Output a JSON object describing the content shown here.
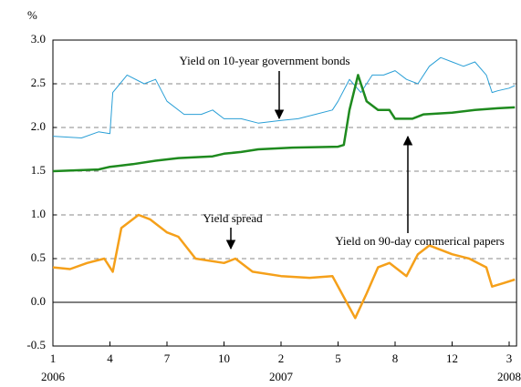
{
  "chart_data": {
    "type": "line",
    "y_unit_label": "%",
    "ylim": [
      -0.5,
      3.0
    ],
    "yticks": [
      {
        "value": 3.0,
        "label": "3.0"
      },
      2.5,
      {
        "value": 2.0,
        "label": "2.0"
      },
      1.5,
      {
        "value": 1.0,
        "label": "1.0"
      },
      0.5,
      {
        "value": 0.0,
        "label": "0.0"
      },
      -0.5
    ],
    "xlim": [
      0,
      8.13
    ],
    "xticks": [
      {
        "value": 0,
        "label": "1"
      },
      {
        "value": 1,
        "label": "4"
      },
      {
        "value": 2,
        "label": "7"
      },
      {
        "value": 3,
        "label": "10"
      },
      {
        "value": 4,
        "label": "2"
      },
      {
        "value": 5,
        "label": "5"
      },
      {
        "value": 6,
        "label": "8"
      },
      {
        "value": 7,
        "label": "12"
      },
      {
        "value": 8,
        "label": "3"
      }
    ],
    "xtick_years": [
      {
        "value": 0,
        "label": "2006"
      },
      {
        "value": 4,
        "label": "2007"
      },
      {
        "value": 8,
        "label": "2008"
      }
    ],
    "grid": true,
    "annotations": [
      "Yield on 10-year government bonds",
      "Yield on 90-day commerical papers",
      "Yield spread"
    ],
    "series": [
      {
        "name": "Yield on 10-year government bonds",
        "color": "#2a9fd6",
        "width": 1,
        "x": [
          0,
          0.5,
          0.8,
          1.0,
          1.05,
          1.3,
          1.6,
          1.8,
          2.0,
          2.3,
          2.6,
          2.8,
          3.0,
          3.3,
          3.6,
          4.0,
          4.3,
          4.6,
          4.9,
          5.0,
          5.2,
          5.4,
          5.6,
          5.8,
          6.0,
          6.2,
          6.4,
          6.6,
          6.8,
          7.0,
          7.2,
          7.4,
          7.6,
          7.7,
          7.8,
          8.0,
          8.1
        ],
        "values": [
          1.9,
          1.88,
          1.95,
          1.93,
          2.4,
          2.6,
          2.5,
          2.55,
          2.3,
          2.15,
          2.15,
          2.2,
          2.1,
          2.1,
          2.05,
          2.08,
          2.1,
          2.15,
          2.2,
          2.3,
          2.55,
          2.4,
          2.6,
          2.6,
          2.65,
          2.55,
          2.5,
          2.7,
          2.8,
          2.75,
          2.7,
          2.75,
          2.6,
          2.4,
          2.42,
          2.45,
          2.48
        ]
      },
      {
        "name": "Yield on 90-day commerical papers",
        "color": "#1e8a1e",
        "width": 2.5,
        "x": [
          0,
          0.8,
          1.0,
          1.4,
          1.8,
          2.2,
          2.8,
          3.0,
          3.3,
          3.6,
          4.2,
          5.0,
          5.1,
          5.2,
          5.35,
          5.5,
          5.7,
          5.9,
          6.0,
          6.3,
          6.5,
          7.0,
          7.4,
          7.8,
          8.1
        ],
        "values": [
          1.5,
          1.52,
          1.55,
          1.58,
          1.62,
          1.65,
          1.67,
          1.7,
          1.72,
          1.75,
          1.77,
          1.78,
          1.8,
          2.2,
          2.6,
          2.3,
          2.2,
          2.2,
          2.1,
          2.1,
          2.15,
          2.17,
          2.2,
          2.22,
          2.23
        ]
      },
      {
        "name": "Yield spread",
        "color": "#f5a01a",
        "width": 2.5,
        "x": [
          0,
          0.3,
          0.6,
          0.9,
          1.05,
          1.2,
          1.5,
          1.7,
          2.0,
          2.2,
          2.5,
          3.0,
          3.2,
          3.5,
          4.0,
          4.5,
          4.9,
          5.15,
          5.3,
          5.5,
          5.7,
          5.9,
          6.2,
          6.4,
          6.6,
          7.0,
          7.3,
          7.6,
          7.7,
          7.9,
          8.1
        ],
        "values": [
          0.4,
          0.38,
          0.45,
          0.5,
          0.35,
          0.85,
          1.0,
          0.95,
          0.8,
          0.75,
          0.5,
          0.45,
          0.5,
          0.35,
          0.3,
          0.28,
          0.3,
          0.0,
          -0.18,
          0.1,
          0.4,
          0.45,
          0.3,
          0.55,
          0.65,
          0.55,
          0.5,
          0.4,
          0.18,
          0.22,
          0.26
        ]
      }
    ]
  }
}
